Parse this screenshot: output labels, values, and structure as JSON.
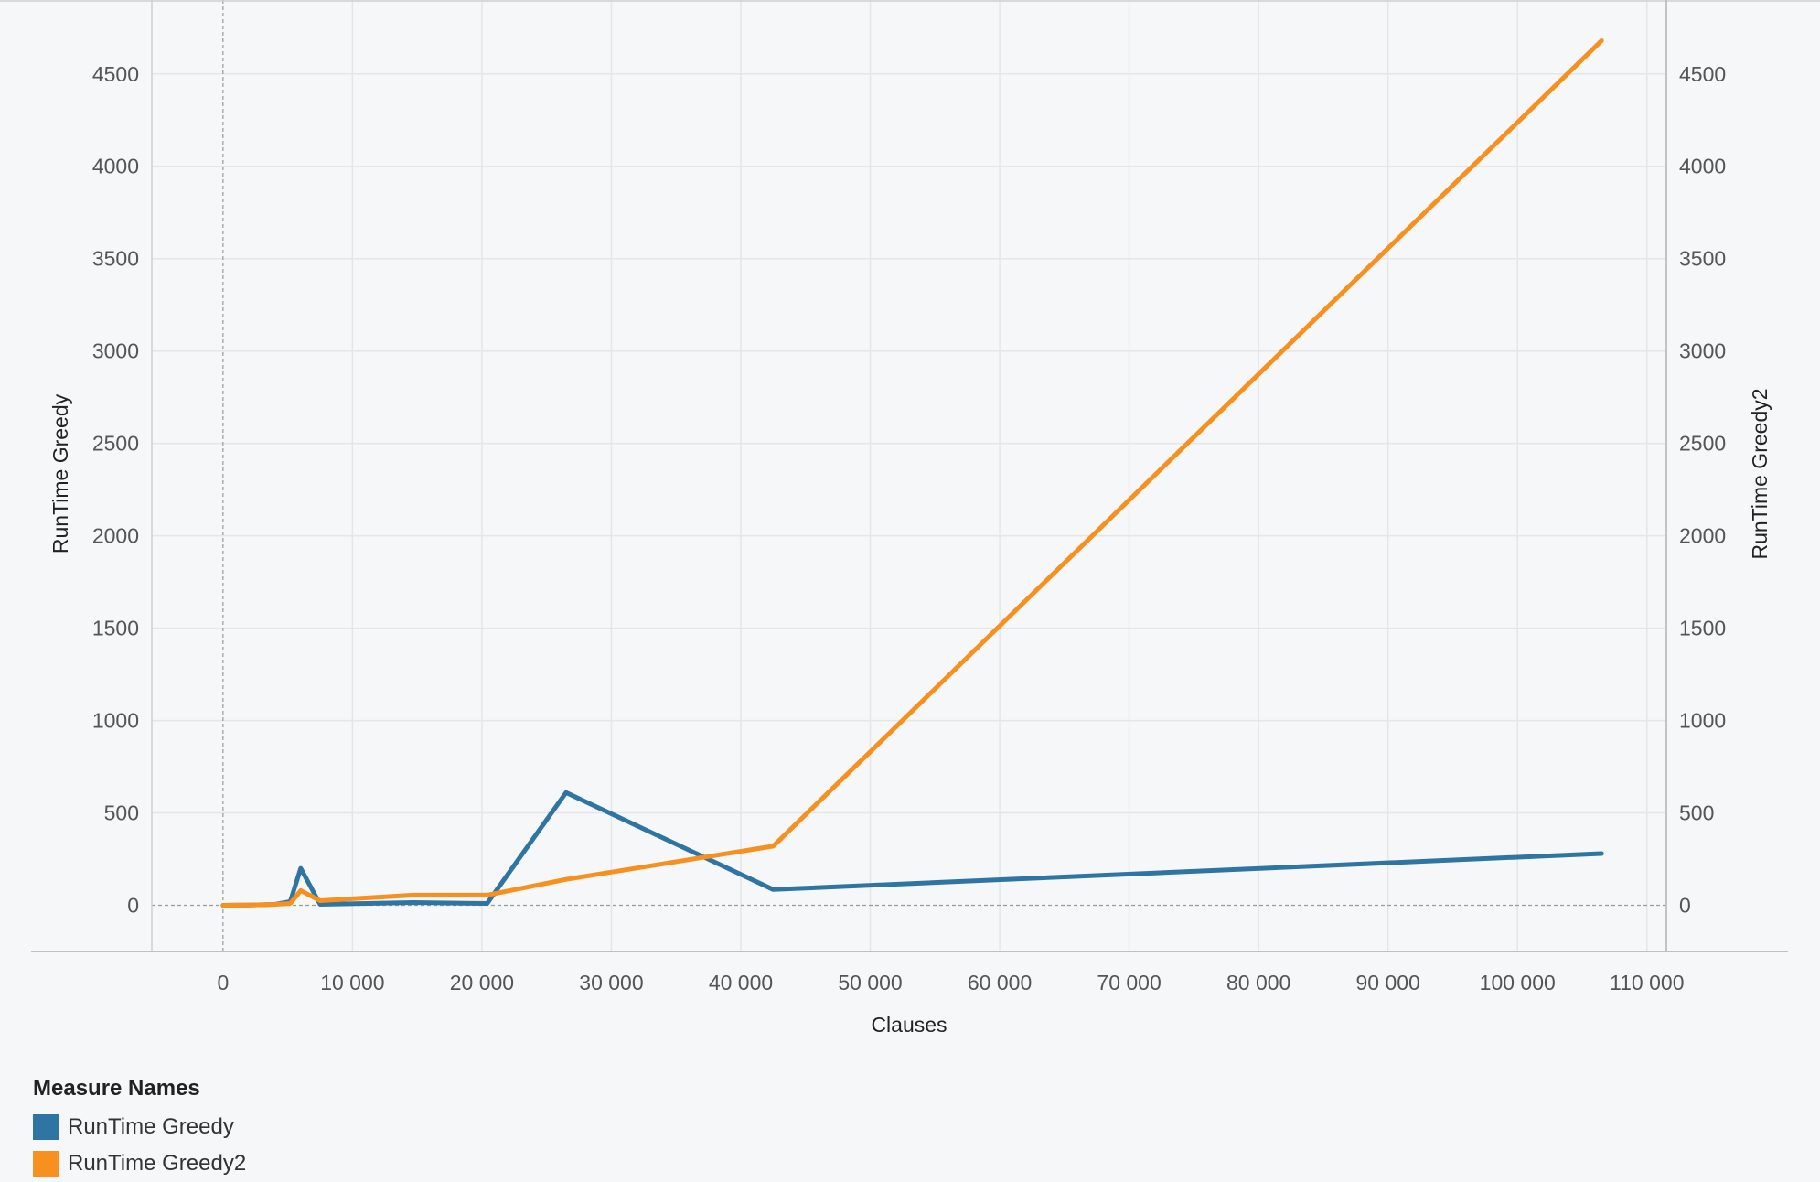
{
  "chart_data": {
    "type": "line",
    "xlabel": "Clauses",
    "ylabel": "RunTime Greedy",
    "y2label": "RunTime Greedy2",
    "xlim": [
      -5500,
      111500
    ],
    "ylim": [
      -250,
      4900
    ],
    "y2lim": [
      -250,
      4900
    ],
    "x_ticks": [
      0,
      10000,
      20000,
      30000,
      40000,
      50000,
      60000,
      70000,
      80000,
      90000,
      100000,
      110000
    ],
    "x_tick_labels": [
      "0",
      "10 000",
      "20 000",
      "30 000",
      "40 000",
      "50 000",
      "60 000",
      "70 000",
      "80 000",
      "90 000",
      "100 000",
      "110 000"
    ],
    "y_ticks": [
      0,
      500,
      1000,
      1500,
      2000,
      2500,
      3000,
      3500,
      4000,
      4500
    ],
    "y_tick_labels": [
      "0",
      "500",
      "1000",
      "1500",
      "2000",
      "2500",
      "3000",
      "3500",
      "4000",
      "4500"
    ],
    "y2_ticks": [
      0,
      500,
      1000,
      1500,
      2000,
      2500,
      3000,
      3500,
      4000,
      4500
    ],
    "y2_tick_labels": [
      "0",
      "500",
      "1000",
      "1500",
      "2000",
      "2500",
      "3000",
      "3500",
      "4000",
      "4500"
    ],
    "grid": true,
    "legend_position": "bottom-left",
    "series": [
      {
        "name": "RunTime Greedy",
        "axis": "left",
        "color": "#2e75a3",
        "x": [
          0,
          2000,
          4000,
          5200,
          6000,
          7500,
          14700,
          20400,
          26500,
          42500,
          106500
        ],
        "y": [
          0,
          1,
          5,
          20,
          200,
          5,
          15,
          10,
          610,
          85,
          280
        ]
      },
      {
        "name": "RunTime Greedy2",
        "axis": "right",
        "color": "#f7901e",
        "x": [
          0,
          2000,
          4000,
          5200,
          6000,
          7500,
          14700,
          20400,
          26500,
          42500,
          106500
        ],
        "y": [
          0,
          1,
          5,
          10,
          80,
          25,
          55,
          55,
          140,
          320,
          4680
        ]
      }
    ]
  },
  "legend": {
    "title": "Measure Names",
    "items": [
      {
        "label": "RunTime Greedy",
        "color": "#2e75a3"
      },
      {
        "label": "RunTime Greedy2",
        "color": "#f7901e"
      }
    ]
  }
}
